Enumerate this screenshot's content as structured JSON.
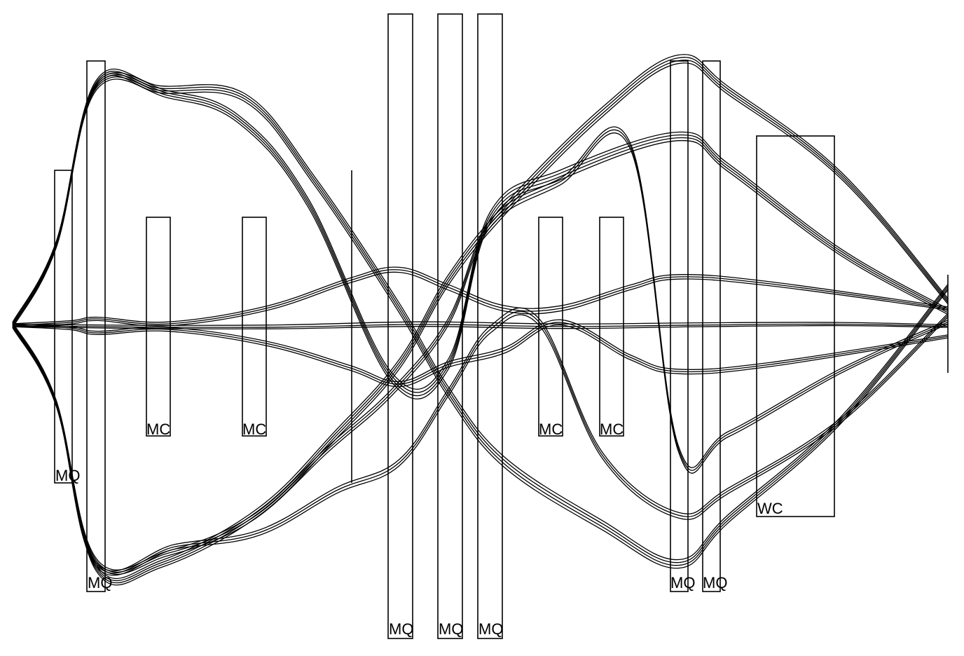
{
  "diagram": {
    "type": "beam-optics-layout",
    "stroke_color": "#000000",
    "background_color": "#ffffff",
    "elements": [
      {
        "id": "q1",
        "label": "MQ"
      },
      {
        "id": "q2",
        "label": "MQ"
      },
      {
        "id": "c1",
        "label": "MC"
      },
      {
        "id": "c2",
        "label": "MC"
      },
      {
        "id": "q3",
        "label": "MQ"
      },
      {
        "id": "q4",
        "label": "MQ"
      },
      {
        "id": "q5",
        "label": "MQ"
      },
      {
        "id": "c3",
        "label": "MC"
      },
      {
        "id": "c4",
        "label": "MC"
      },
      {
        "id": "q6",
        "label": "MQ"
      },
      {
        "id": "q7",
        "label": "MQ"
      },
      {
        "id": "w1",
        "label": "WC"
      }
    ]
  }
}
